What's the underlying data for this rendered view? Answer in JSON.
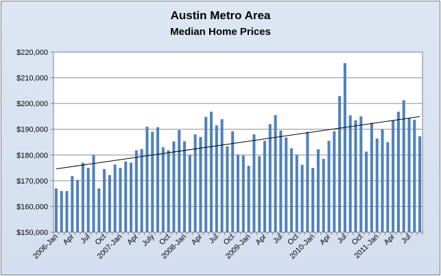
{
  "chart_data": {
    "type": "bar",
    "title": "Austin Metro Area",
    "subtitle": "Median Home Prices",
    "xlabel": "",
    "ylabel": "",
    "ylim": [
      150000,
      220000
    ],
    "yticks": [
      150000,
      160000,
      170000,
      180000,
      190000,
      200000,
      210000,
      220000
    ],
    "ytick_labels": [
      "$150,000",
      "$160,000",
      "$170,000",
      "$180,000",
      "$190,000",
      "$200,000",
      "$210,000",
      "$220,000"
    ],
    "xtick_labels": [
      {
        "index": 0,
        "label": "2006-Jan"
      },
      {
        "index": 3,
        "label": "Apr"
      },
      {
        "index": 6,
        "label": "Jul"
      },
      {
        "index": 9,
        "label": "Oct"
      },
      {
        "index": 12,
        "label": "2007-Jan"
      },
      {
        "index": 15,
        "label": "Apr"
      },
      {
        "index": 18,
        "label": "July"
      },
      {
        "index": 21,
        "label": "Oct"
      },
      {
        "index": 24,
        "label": "2008-Jan"
      },
      {
        "index": 27,
        "label": "Apr"
      },
      {
        "index": 30,
        "label": "Jul"
      },
      {
        "index": 33,
        "label": "Oct"
      },
      {
        "index": 36,
        "label": "2009-Jan"
      },
      {
        "index": 39,
        "label": "Apr"
      },
      {
        "index": 42,
        "label": "Jul"
      },
      {
        "index": 45,
        "label": "Oct"
      },
      {
        "index": 48,
        "label": "2010-Jan"
      },
      {
        "index": 51,
        "label": "Apr"
      },
      {
        "index": 54,
        "label": "Jul"
      },
      {
        "index": 57,
        "label": "Oct"
      },
      {
        "index": 60,
        "label": "2011-Jan"
      },
      {
        "index": 63,
        "label": "Apr"
      },
      {
        "index": 66,
        "label": "Jul"
      }
    ],
    "values": [
      167000,
      166000,
      166000,
      171800,
      170300,
      177000,
      175000,
      180000,
      167000,
      174500,
      172200,
      176300,
      175000,
      177500,
      177000,
      181800,
      182300,
      191000,
      189000,
      190800,
      183000,
      181800,
      185300,
      189700,
      185300,
      180000,
      188000,
      187000,
      194800,
      196800,
      191500,
      193900,
      183300,
      189200,
      180200,
      179800,
      175800,
      188000,
      179500,
      185500,
      192000,
      195500,
      189500,
      186800,
      182600,
      180000,
      176200,
      189000,
      175000,
      182200,
      178500,
      185500,
      189200,
      202900,
      215700,
      195400,
      193500,
      195000,
      181300,
      192500,
      186400,
      190000,
      185000,
      193500,
      196800,
      201300,
      194500,
      193700,
      187300
    ],
    "trendline": {
      "start": 174600,
      "end": 194900
    },
    "grid": true,
    "legend": "none",
    "bar_color": "#4f81bd",
    "plot_background": "#ffffff",
    "chart_background": "#d9e3f1"
  }
}
